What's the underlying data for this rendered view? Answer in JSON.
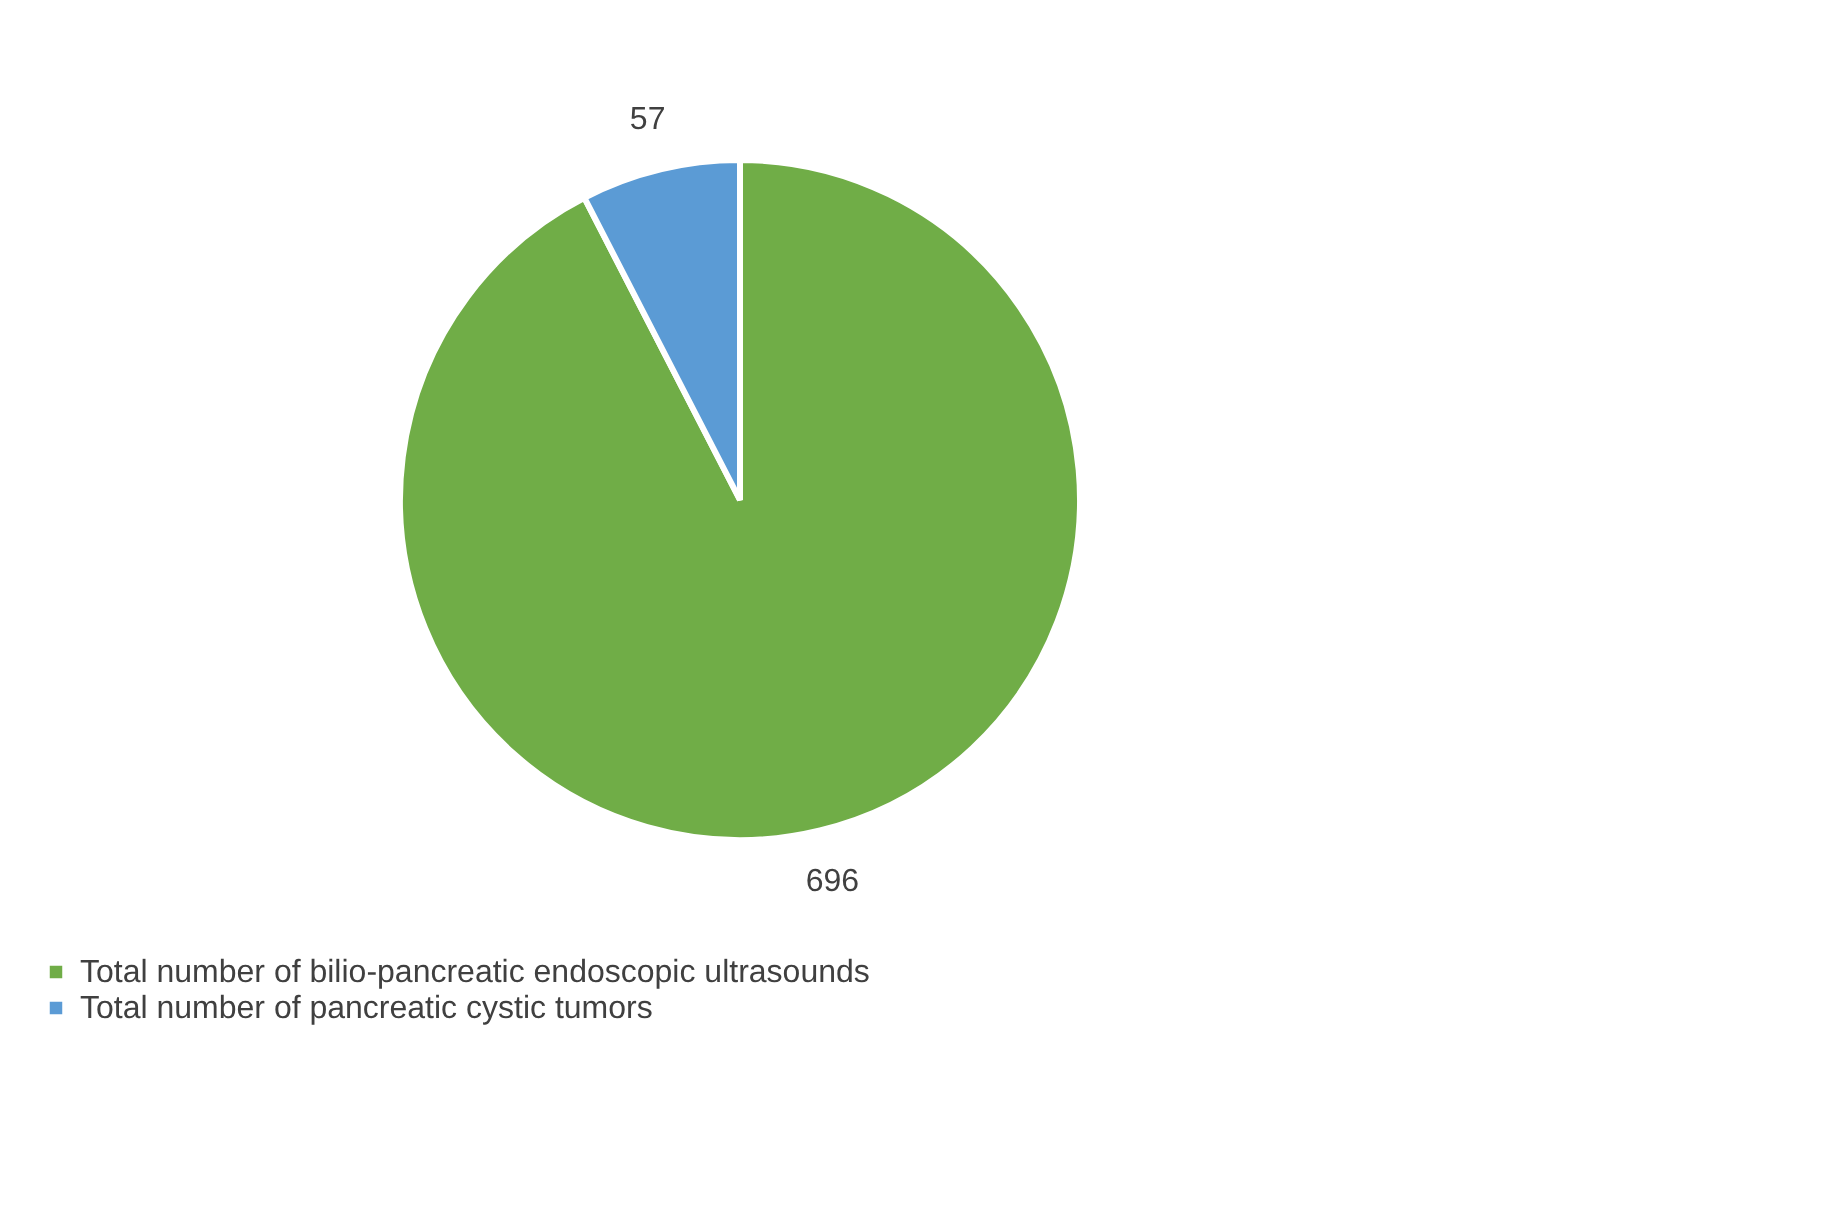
{
  "chart_data": {
    "type": "pie",
    "categories": [
      "Total number of bilio-pancreatic endoscopic ultrasounds",
      "Total number of pancreatic cystic tumors"
    ],
    "values": [
      696,
      57
    ],
    "colors": [
      "#70ad47",
      "#5b9bd5"
    ],
    "data_labels": true,
    "legend": "bottom"
  }
}
